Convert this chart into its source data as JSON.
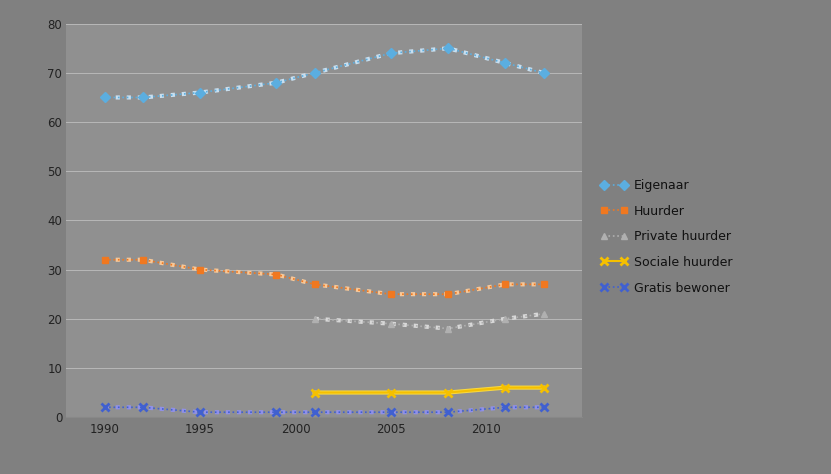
{
  "years_eigenaar": [
    1990,
    1992,
    1995,
    1999,
    2001,
    2005,
    2008,
    2011,
    2013
  ],
  "values_eigenaar": [
    65,
    65,
    66,
    68,
    70,
    74,
    75,
    72,
    70
  ],
  "years_huurder": [
    1990,
    1992,
    1995,
    1999,
    2001,
    2005,
    2008,
    2011,
    2013
  ],
  "values_huurder": [
    32,
    32,
    30,
    29,
    27,
    25,
    25,
    27,
    27
  ],
  "years_private": [
    2001,
    2005,
    2008,
    2011,
    2013
  ],
  "values_private": [
    20,
    19,
    18,
    20,
    21
  ],
  "years_sociale": [
    2001,
    2005,
    2008,
    2011,
    2013
  ],
  "values_sociale": [
    5,
    5,
    5,
    6,
    6
  ],
  "years_gratis": [
    1990,
    1992,
    1995,
    1999,
    2001,
    2005,
    2008,
    2011,
    2013
  ],
  "values_gratis": [
    2,
    2,
    1,
    1,
    1,
    1,
    1,
    2,
    2
  ],
  "color_eigenaar": "#5baee0",
  "color_huurder": "#f07820",
  "color_private": "#b0b0b0",
  "color_sociale": "#f5c000",
  "color_gratis": "#4060d0",
  "label_eigenaar": "Eigenaar",
  "label_huurder": "Huurder",
  "label_private": "Private huurder",
  "label_sociale": "Sociale huurder",
  "label_gratis": "Gratis bewoner",
  "xlim": [
    1988,
    2015
  ],
  "ylim": [
    0,
    80
  ],
  "yticks": [
    0,
    10,
    20,
    30,
    40,
    50,
    60,
    70,
    80
  ],
  "xticks": [
    1990,
    1995,
    2000,
    2005,
    2010
  ],
  "background_color": "#808080",
  "grid_color": "#999999",
  "plot_bg_color": "#909090"
}
